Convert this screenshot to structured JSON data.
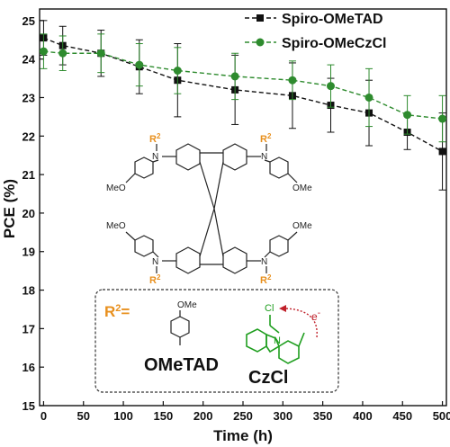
{
  "chart_data": {
    "type": "line",
    "xlabel": "Time (h)",
    "ylabel": "PCE (%)",
    "xlim": [
      -5,
      505
    ],
    "ylim": [
      15,
      25.3
    ],
    "xticks": [
      "0",
      "50",
      "100",
      "150",
      "200",
      "250",
      "300",
      "350",
      "400",
      "450",
      "500"
    ],
    "yticks": [
      "15",
      "16",
      "17",
      "18",
      "19",
      "20",
      "21",
      "22",
      "23",
      "24",
      "25"
    ],
    "legend_position": "top-right",
    "series": [
      {
        "name": "Spiro-OMeTAD",
        "color": "#111111",
        "marker": "square",
        "x": [
          0,
          24,
          72,
          120,
          168,
          240,
          312,
          360,
          408,
          456,
          500
        ],
        "y": [
          24.55,
          24.35,
          24.15,
          23.8,
          23.45,
          23.2,
          23.05,
          22.8,
          22.6,
          22.1,
          21.6
        ],
        "err": [
          0.45,
          0.5,
          0.6,
          0.7,
          0.95,
          0.9,
          0.85,
          0.7,
          0.85,
          0.45,
          1.0
        ]
      },
      {
        "name": "Spiro-OMeCzCl",
        "color": "#2e8b2e",
        "marker": "circle",
        "x": [
          0,
          24,
          72,
          120,
          168,
          240,
          312,
          360,
          408,
          456,
          500
        ],
        "y": [
          24.2,
          24.15,
          24.15,
          23.85,
          23.7,
          23.55,
          23.45,
          23.3,
          23.0,
          22.55,
          22.45
        ],
        "err": [
          0.45,
          0.45,
          0.5,
          0.55,
          0.6,
          0.6,
          0.5,
          0.55,
          0.75,
          0.5,
          0.6
        ]
      }
    ]
  },
  "structure": {
    "r2_label": "R",
    "r2_superscript": "2",
    "ome_label": "MeO",
    "ome_label_right": "OMe",
    "n_label": "N",
    "inset_eq": "R",
    "inset_eq_sup": "2",
    "inset_eq_tail": "=",
    "inset_ome": "OMe",
    "substituent_1": "OMeTAD",
    "substituent_2": "CzCl",
    "cl_label": "Cl",
    "n_cz_label": "N",
    "electron_label": "e",
    "electron_sup": "-"
  },
  "colors": {
    "r2": "#e8901e",
    "green": "#1f9e1f",
    "electron": "#c0202a"
  }
}
